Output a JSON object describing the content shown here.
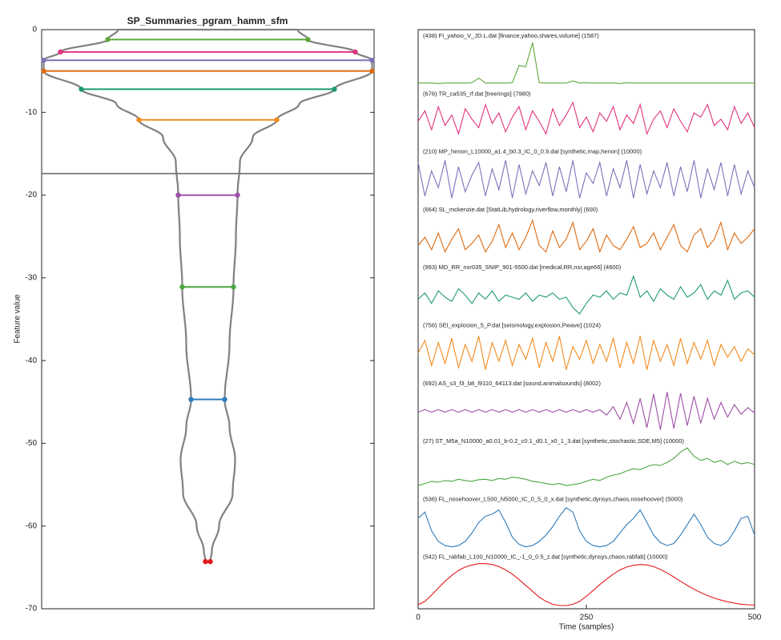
{
  "chart_data": [
    {
      "type": "violin",
      "title": "SP_Summaries_pgram_hamm_sfm",
      "ylabel": "Feature value",
      "ylim": [
        -70,
        0
      ],
      "yticks": [
        0,
        -10,
        -20,
        -30,
        -40,
        -50,
        -60,
        -70
      ],
      "values": [
        -1.2,
        -2.7,
        -3.7,
        -5.0,
        -7.2,
        -10.9,
        -20.0,
        -31.1,
        -44.7,
        -64.3
      ],
      "colors": [
        "#5ea83a",
        "#e2337f",
        "#7b72b8",
        "#dc6a11",
        "#1d9a74",
        "#f28a1c",
        "#9e4fa6",
        "#4aa83f",
        "#2f7cbc",
        "#e41a1c"
      ],
      "threshold": -17.4,
      "threshold_color": "#6e6e6e"
    },
    {
      "type": "line",
      "xlabel": "Time (samples)",
      "xlim": [
        0,
        500
      ],
      "xticks": [
        0,
        250,
        500
      ],
      "x": [
        0,
        10,
        20,
        30,
        40,
        50,
        60,
        70,
        80,
        90,
        100,
        110,
        120,
        130,
        140,
        150,
        160,
        170,
        180,
        190,
        200,
        210,
        220,
        230,
        240,
        250,
        260,
        270,
        280,
        290,
        300,
        310,
        320,
        330,
        340,
        350,
        360,
        370,
        380,
        390,
        400,
        410,
        420,
        430,
        440,
        450,
        460,
        470,
        480,
        490,
        500
      ],
      "series": [
        {
          "name": "(438) FI_yahoo_V_JD.L.dat [finance,yahoo,shares,volume] (1587)",
          "color": "#5ea83a",
          "values": [
            0.03,
            0.03,
            0.03,
            0.02,
            0.03,
            0.03,
            0.03,
            0.03,
            0.04,
            0.15,
            0.03,
            0.03,
            0.03,
            0.03,
            0.04,
            0.45,
            0.42,
            1.0,
            0.04,
            0.03,
            0.03,
            0.03,
            0.03,
            0.08,
            0.03,
            0.04,
            0.03,
            0.03,
            0.03,
            0.03,
            0.02,
            0.04,
            0.03,
            0.03,
            0.03,
            0.03,
            0.03,
            0.03,
            0.03,
            0.03,
            0.03,
            0.03,
            0.03,
            0.03,
            0.03,
            0.03,
            0.03,
            0.03,
            0.03,
            0.03,
            0.03
          ]
        },
        {
          "name": "(676) TR_ca535_rf.dat [treerings] (7980)",
          "color": "#e2337f",
          "values": [
            0.5,
            0.75,
            0.3,
            0.85,
            0.4,
            0.65,
            0.2,
            0.8,
            0.55,
            0.35,
            0.9,
            0.45,
            0.7,
            0.25,
            0.6,
            0.85,
            0.3,
            0.75,
            0.5,
            0.2,
            0.8,
            0.4,
            0.65,
            0.95,
            0.35,
            0.6,
            0.25,
            0.7,
            0.5,
            0.85,
            0.3,
            0.65,
            0.45,
            0.9,
            0.2,
            0.55,
            0.75,
            0.35,
            0.8,
            0.5,
            0.25,
            0.7,
            0.6,
            0.9,
            0.4,
            0.55,
            0.3,
            0.85,
            0.45,
            0.7,
            0.35
          ]
        },
        {
          "name": "(210) MP_henon_L10000_a1.4_b0.3_IC_0_0.9.dat [synthetic,map,henon] (10000)",
          "color": "#7b72b8",
          "values": [
            0.9,
            0.1,
            0.7,
            0.3,
            0.95,
            0.05,
            0.8,
            0.2,
            0.6,
            0.9,
            0.1,
            0.75,
            0.25,
            0.95,
            0.05,
            0.85,
            0.15,
            0.7,
            0.35,
            0.9,
            0.1,
            0.8,
            0.2,
            0.95,
            0.05,
            0.65,
            0.4,
            0.9,
            0.1,
            0.75,
            0.3,
            0.95,
            0.05,
            0.85,
            0.15,
            0.7,
            0.3,
            0.9,
            0.1,
            0.8,
            0.2,
            0.95,
            0.05,
            0.75,
            0.25,
            0.9,
            0.1,
            0.85,
            0.15,
            0.7,
            0.3
          ]
        },
        {
          "name": "(664) SL_mckenzie.dat [StatLib,hydrology,riverflow,monthly] (600)",
          "color": "#dc6a11",
          "values": [
            0.3,
            0.5,
            0.2,
            0.6,
            0.15,
            0.45,
            0.7,
            0.2,
            0.35,
            0.55,
            0.15,
            0.4,
            0.8,
            0.25,
            0.6,
            0.2,
            0.5,
            0.9,
            0.3,
            0.15,
            0.65,
            0.25,
            0.45,
            0.85,
            0.2,
            0.4,
            0.7,
            0.15,
            0.55,
            0.3,
            0.2,
            0.45,
            0.75,
            0.25,
            0.35,
            0.6,
            0.2,
            0.5,
            0.8,
            0.3,
            0.15,
            0.55,
            0.7,
            0.25,
            0.45,
            0.85,
            0.2,
            0.6,
            0.35,
            0.5,
            0.7
          ]
        },
        {
          "name": "(993) MD_RR_nsr035_SNIP_901-5500.dat [medical,RR,nsr,age66] (4600)",
          "color": "#1d9a74",
          "values": [
            0.4,
            0.55,
            0.3,
            0.6,
            0.45,
            0.35,
            0.65,
            0.5,
            0.3,
            0.55,
            0.4,
            0.6,
            0.35,
            0.5,
            0.45,
            0.4,
            0.55,
            0.35,
            0.5,
            0.45,
            0.55,
            0.4,
            0.45,
            0.2,
            0.05,
            0.3,
            0.5,
            0.45,
            0.6,
            0.4,
            0.55,
            0.5,
            0.95,
            0.45,
            0.6,
            0.35,
            0.65,
            0.5,
            0.4,
            0.7,
            0.45,
            0.55,
            0.75,
            0.4,
            0.6,
            0.5,
            0.85,
            0.4,
            0.55,
            0.6,
            0.45
          ]
        },
        {
          "name": "(756) SEI_explosion_5_P.dat [seismology,explosion,Pwave] (1024)",
          "color": "#f28a1c",
          "values": [
            0.5,
            0.8,
            0.2,
            0.75,
            0.25,
            0.85,
            0.15,
            0.7,
            0.3,
            0.9,
            0.1,
            0.75,
            0.3,
            0.8,
            0.2,
            0.7,
            0.35,
            0.85,
            0.15,
            0.75,
            0.3,
            0.9,
            0.1,
            0.65,
            0.35,
            0.8,
            0.25,
            0.7,
            0.3,
            0.85,
            0.15,
            0.75,
            0.25,
            0.9,
            0.1,
            0.8,
            0.3,
            0.7,
            0.2,
            0.85,
            0.25,
            0.75,
            0.35,
            0.8,
            0.2,
            0.7,
            0.4,
            0.65,
            0.3,
            0.6,
            0.45
          ]
        },
        {
          "name": "(692) AS_s3_f3_b8_l9110_64113.dat [sound,animalsounds] (8002)",
          "color": "#9e4fa6",
          "values": [
            0.47,
            0.53,
            0.47,
            0.53,
            0.47,
            0.53,
            0.47,
            0.53,
            0.47,
            0.53,
            0.47,
            0.53,
            0.47,
            0.53,
            0.47,
            0.53,
            0.47,
            0.53,
            0.47,
            0.53,
            0.47,
            0.53,
            0.47,
            0.53,
            0.47,
            0.53,
            0.47,
            0.53,
            0.4,
            0.6,
            0.3,
            0.7,
            0.2,
            0.8,
            0.1,
            0.9,
            0.05,
            0.95,
            0.08,
            0.92,
            0.15,
            0.85,
            0.2,
            0.8,
            0.3,
            0.7,
            0.35,
            0.65,
            0.42,
            0.58,
            0.45
          ]
        },
        {
          "name": "(27) ST_M5a_N10000_a0.01_b-0.2_c0.1_d0.1_x0_1_3.dat [synthetic,stochastic,SDE,M5] (10000)",
          "color": "#4aa83f",
          "values": [
            0.1,
            0.15,
            0.2,
            0.18,
            0.22,
            0.2,
            0.25,
            0.22,
            0.2,
            0.24,
            0.25,
            0.22,
            0.27,
            0.25,
            0.3,
            0.28,
            0.25,
            0.2,
            0.18,
            0.15,
            0.12,
            0.15,
            0.1,
            0.12,
            0.15,
            0.2,
            0.25,
            0.22,
            0.3,
            0.35,
            0.38,
            0.45,
            0.5,
            0.48,
            0.55,
            0.6,
            0.58,
            0.65,
            0.75,
            0.9,
            1.0,
            0.8,
            0.7,
            0.75,
            0.65,
            0.7,
            0.6,
            0.68,
            0.62,
            0.65,
            0.6
          ]
        },
        {
          "name": "(536) FL_nosehoover_L500_N5000_IC_0_5_0_x.dat [synthetic,dynsys,chaos,nosehoover] (5000)",
          "color": "#2f7cbc",
          "values": [
            0.7,
            0.85,
            0.4,
            0.15,
            0.05,
            0.02,
            0.05,
            0.15,
            0.35,
            0.6,
            0.75,
            0.8,
            0.9,
            0.6,
            0.25,
            0.08,
            0.02,
            0.05,
            0.15,
            0.3,
            0.5,
            0.75,
            0.95,
            0.85,
            0.4,
            0.15,
            0.05,
            0.02,
            0.05,
            0.15,
            0.35,
            0.55,
            0.7,
            0.9,
            0.6,
            0.3,
            0.12,
            0.05,
            0.1,
            0.3,
            0.55,
            0.8,
            0.55,
            0.25,
            0.1,
            0.05,
            0.15,
            0.4,
            0.7,
            0.75,
            0.3
          ]
        },
        {
          "name": "(542) FL_rabfab_L100_N10000_IC_-1_0_0.5_z.dat [synthetic,dynsys,chaos,rabfab] (10000)",
          "color": "#e41a1c",
          "values": [
            0.02,
            0.1,
            0.25,
            0.42,
            0.58,
            0.72,
            0.84,
            0.92,
            0.97,
            1.0,
            1.0,
            0.98,
            0.93,
            0.85,
            0.75,
            0.62,
            0.48,
            0.34,
            0.2,
            0.1,
            0.03,
            0.0,
            0.0,
            0.03,
            0.1,
            0.22,
            0.36,
            0.5,
            0.63,
            0.75,
            0.85,
            0.92,
            0.96,
            0.98,
            0.97,
            0.93,
            0.86,
            0.78,
            0.68,
            0.58,
            0.48,
            0.39,
            0.31,
            0.24,
            0.18,
            0.13,
            0.09,
            0.06,
            0.03,
            0.02,
            0.01
          ]
        }
      ]
    }
  ]
}
